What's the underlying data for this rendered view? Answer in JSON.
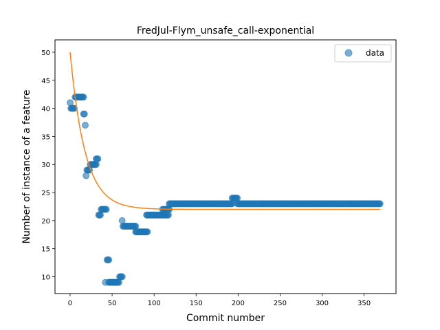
{
  "chart_data": {
    "type": "scatter",
    "title": "FredJul-Flym_unsafe_call-exponential",
    "xlabel": "Commit number",
    "ylabel": "Number of instance of a feature",
    "xlim": [
      -18,
      388
    ],
    "ylim": [
      7,
      52.2
    ],
    "xticks": [
      0,
      50,
      100,
      150,
      200,
      250,
      300,
      350
    ],
    "yticks": [
      10,
      15,
      20,
      25,
      30,
      35,
      40,
      45,
      50
    ],
    "legend": {
      "position": "top-right",
      "entries": [
        "data"
      ]
    },
    "colors": {
      "points": "#1f77b4",
      "fit": "#ff7f0e"
    },
    "series": [
      {
        "name": "data",
        "kind": "scatter",
        "segments": [
          {
            "x_from": 0,
            "x_to": 0,
            "y": 41
          },
          {
            "x_from": 1,
            "x_to": 5,
            "y": 40
          },
          {
            "x_from": 6,
            "x_to": 16,
            "y": 42
          },
          {
            "x_from": 16,
            "x_to": 17,
            "y": 39
          },
          {
            "x_from": 18,
            "x_to": 18,
            "y": 37
          },
          {
            "x_from": 19,
            "x_to": 19,
            "y": 28
          },
          {
            "x_from": 20,
            "x_to": 23,
            "y": 29
          },
          {
            "x_from": 24,
            "x_to": 31,
            "y": 30
          },
          {
            "x_from": 31,
            "x_to": 33,
            "y": 31
          },
          {
            "x_from": 34,
            "x_to": 36,
            "y": 21
          },
          {
            "x_from": 37,
            "x_to": 43,
            "y": 22
          },
          {
            "x_from": 42,
            "x_to": 42,
            "y": 9
          },
          {
            "x_from": 44,
            "x_to": 46,
            "y": 13
          },
          {
            "x_from": 46,
            "x_to": 58,
            "y": 9
          },
          {
            "x_from": 59,
            "x_to": 62,
            "y": 10
          },
          {
            "x_from": 62,
            "x_to": 62,
            "y": 20
          },
          {
            "x_from": 63,
            "x_to": 78,
            "y": 19
          },
          {
            "x_from": 78,
            "x_to": 92,
            "y": 18
          },
          {
            "x_from": 91,
            "x_to": 117,
            "y": 21
          },
          {
            "x_from": 110,
            "x_to": 118,
            "y": 22
          },
          {
            "x_from": 118,
            "x_to": 193,
            "y": 23
          },
          {
            "x_from": 193,
            "x_to": 199,
            "y": 24
          },
          {
            "x_from": 199,
            "x_to": 369,
            "y": 23
          }
        ]
      },
      {
        "name": "",
        "kind": "line",
        "formula": {
          "y0": 22,
          "amplitude": 28,
          "decay": 0.0562
        },
        "x_range": [
          0,
          369
        ]
      }
    ]
  }
}
